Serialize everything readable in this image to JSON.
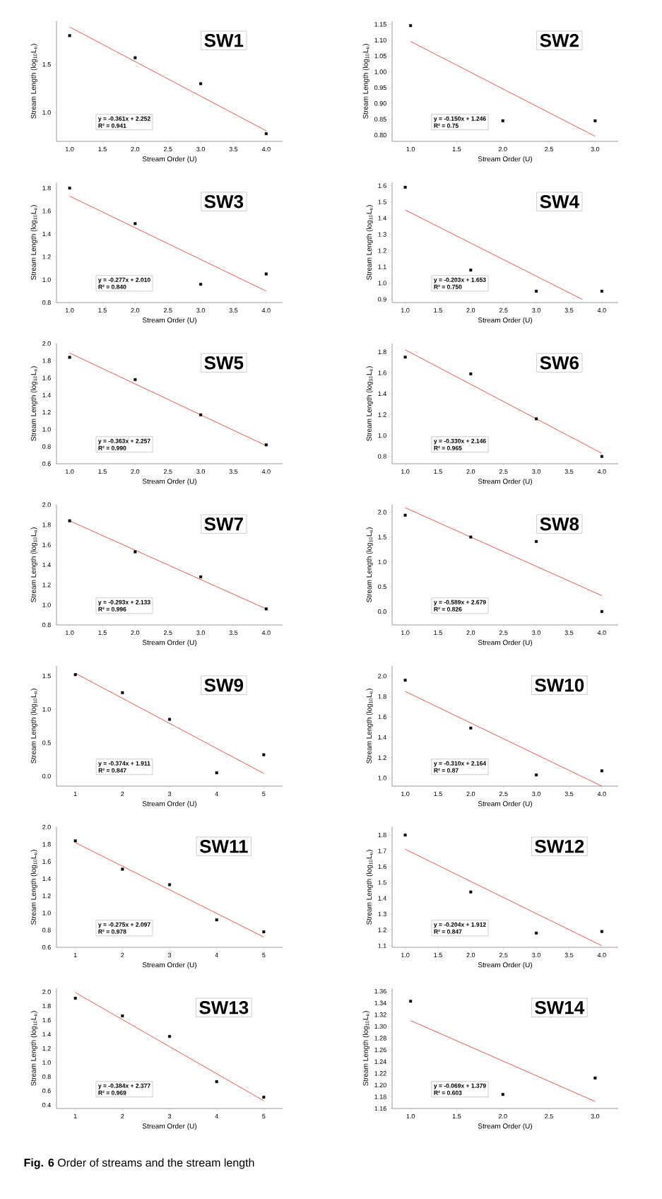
{
  "chart_data": [
    {
      "type": "scatter",
      "title": "SW1",
      "xlabel": "Stream Order (U)",
      "ylabel": "Stream Length (log$_{10}$L$_{u}$)",
      "annotations": [
        "y = -0.361x + 2.252",
        "R² = 0.941",
        "**Fig. 6** Order of streams and the stream length"
      ],
      "xlim": [
        0.8,
        4.25
      ],
      "ylim": [
        0.7,
        1.95
      ],
      "xticks": [
        {
          "value": 1,
          "label": "1.0"
        },
        1.5,
        {
          "value": 2,
          "label": "2.0"
        },
        2.5,
        {
          "value": 3,
          "label": "3.0"
        },
        3.5,
        {
          "value": 4,
          "label": "4.0"
        }
      ],
      "yticks": [
        {
          "value": 1,
          "label": "1.0"
        },
        1.5
      ],
      "series": [
        {
          "marker": "square",
          "color": "#000000",
          "x": [
            1,
            2,
            3,
            4
          ],
          "values": [
            1.8,
            1.57,
            1.3,
            0.78
          ]
        },
        {
          "type": "line",
          "color": "#e8473f",
          "x": [
            1,
            4
          ],
          "values": [
            1.89,
            0.81
          ]
        }
      ]
    },
    {
      "type": "scatter",
      "title": "SW2",
      "xlabel": "Stream Order (U)",
      "ylabel": "Stream Length (log$_{10}$L$_{u}$)",
      "annotations": [
        "y = -0.150x + 1.246",
        "R² = 0.75"
      ],
      "xlim": [
        0.8,
        3.25
      ],
      "ylim": [
        0.78,
        1.16
      ],
      "xticks": [
        {
          "value": 1,
          "label": "1.0"
        },
        1.5,
        {
          "value": 2,
          "label": "2.0"
        },
        2.5,
        {
          "value": 3,
          "label": "3.0"
        }
      ],
      "yticks": [
        {
          "value": 0.8,
          "label": "0.80"
        },
        0.85,
        {
          "value": 0.9,
          "label": "0.90"
        },
        0.95,
        {
          "value": 1,
          "label": "1.00"
        },
        1.05,
        {
          "value": 1.1,
          "label": "1.10"
        },
        1.15
      ],
      "series": [
        {
          "marker": "square",
          "color": "#000000",
          "x": [
            1,
            2,
            3
          ],
          "values": [
            1.146,
            0.845,
            0.845
          ]
        },
        {
          "type": "line",
          "color": "#e8473f",
          "x": [
            1,
            3
          ],
          "values": [
            1.096,
            0.796
          ]
        }
      ]
    },
    {
      "type": "scatter",
      "title": "SW3",
      "xlabel": "Stream Order (U)",
      "ylabel": "Stream Length (log$_{10}$L$_{u}$)",
      "annotations": [
        "y = -0.277x + 2.010",
        "R² = 0.840"
      ],
      "xlim": [
        0.8,
        4.25
      ],
      "ylim": [
        0.8,
        1.85
      ],
      "xticks": [
        {
          "value": 1,
          "label": "1.0"
        },
        1.5,
        {
          "value": 2,
          "label": "2.0"
        },
        2.5,
        {
          "value": 3,
          "label": "3.0"
        },
        3.5,
        {
          "value": 4,
          "label": "4.0"
        }
      ],
      "yticks": [
        0.8,
        {
          "value": 1,
          "label": "1.0"
        },
        1.2,
        1.4,
        1.6,
        1.8
      ],
      "series": [
        {
          "marker": "square",
          "color": "#000000",
          "x": [
            1,
            2,
            3,
            4
          ],
          "values": [
            1.8,
            1.49,
            0.96,
            1.05
          ]
        },
        {
          "type": "line",
          "color": "#e8473f",
          "x": [
            1,
            4
          ],
          "values": [
            1.73,
            0.9
          ]
        }
      ]
    },
    {
      "type": "scatter",
      "title": "SW4",
      "xlabel": "Stream Order (U)",
      "ylabel": "Stream Length (log$_{10}$L$_{u}$)",
      "annotations": [
        "y = -0.203x + 1.653",
        "R² = 0.750"
      ],
      "xlim": [
        0.8,
        4.25
      ],
      "ylim": [
        0.88,
        1.62
      ],
      "xticks": [
        {
          "value": 1,
          "label": "1.0"
        },
        1.5,
        {
          "value": 2,
          "label": "2.0"
        },
        2.5,
        {
          "value": 3,
          "label": "3.0"
        },
        3.5,
        {
          "value": 4,
          "label": "4.0"
        }
      ],
      "yticks": [
        0.9,
        {
          "value": 1,
          "label": "1.0"
        },
        1.1,
        1.2,
        1.3,
        1.4,
        1.5,
        1.6
      ],
      "series": [
        {
          "marker": "square",
          "color": "#000000",
          "x": [
            1,
            2,
            3,
            4
          ],
          "values": [
            1.59,
            1.08,
            0.95,
            0.95
          ]
        },
        {
          "type": "line",
          "color": "#e8473f",
          "x": [
            1,
            3.7
          ],
          "values": [
            1.45,
            0.9
          ]
        }
      ]
    },
    {
      "type": "scatter",
      "title": "SW5",
      "xlabel": "Stream Order (U)",
      "ylabel": "Stream Length (log$_{10}$L$_{u}$)",
      "annotations": [
        "y = -0.363x + 2.257",
        "R² = 0.990"
      ],
      "xlim": [
        0.8,
        4.25
      ],
      "ylim": [
        0.6,
        2.0
      ],
      "xticks": [
        {
          "value": 1,
          "label": "1.0"
        },
        1.5,
        {
          "value": 2,
          "label": "2.0"
        },
        2.5,
        {
          "value": 3,
          "label": "3.0"
        },
        3.5,
        {
          "value": 4,
          "label": "4.0"
        }
      ],
      "yticks": [
        0.6,
        0.8,
        {
          "value": 1,
          "label": "1.0"
        },
        1.2,
        1.4,
        1.6,
        1.8,
        {
          "value": 2,
          "label": "2.0"
        }
      ],
      "series": [
        {
          "marker": "square",
          "color": "#000000",
          "x": [
            1,
            2,
            3,
            4
          ],
          "values": [
            1.84,
            1.58,
            1.17,
            0.82
          ]
        },
        {
          "type": "line",
          "color": "#e8473f",
          "x": [
            1,
            4
          ],
          "values": [
            1.89,
            0.81
          ]
        }
      ]
    },
    {
      "type": "scatter",
      "title": "SW6",
      "xlabel": "Stream Order (U)",
      "ylabel": "Stream Length (log$_{10}$L$_{u}$)",
      "annotations": [
        "y = -0.330x + 2.146",
        "R² = 0.965"
      ],
      "xlim": [
        0.8,
        4.25
      ],
      "ylim": [
        0.73,
        1.88
      ],
      "xticks": [
        {
          "value": 1,
          "label": "1.0"
        },
        1.5,
        {
          "value": 2,
          "label": "2.0"
        },
        2.5,
        {
          "value": 3,
          "label": "3.0"
        },
        3.5,
        {
          "value": 4,
          "label": "4.0"
        }
      ],
      "yticks": [
        0.8,
        {
          "value": 1,
          "label": "1.0"
        },
        1.2,
        1.4,
        1.6,
        1.8
      ],
      "series": [
        {
          "marker": "square",
          "color": "#000000",
          "x": [
            1,
            2,
            3,
            4
          ],
          "values": [
            1.75,
            1.59,
            1.16,
            0.8
          ]
        },
        {
          "type": "line",
          "color": "#e8473f",
          "x": [
            1,
            4
          ],
          "values": [
            1.82,
            0.83
          ]
        }
      ]
    },
    {
      "type": "scatter",
      "title": "SW7",
      "xlabel": "Stream Order (U)",
      "ylabel": "Stream Length (log$_{10}$L$_{u}$)",
      "annotations": [
        "y = -0.293x + 2.133",
        "R² = 0.996"
      ],
      "xlim": [
        0.8,
        4.25
      ],
      "ylim": [
        0.8,
        2.0
      ],
      "xticks": [
        {
          "value": 1,
          "label": "1.0"
        },
        1.5,
        {
          "value": 2,
          "label": "2.0"
        },
        2.5,
        {
          "value": 3,
          "label": "3.0"
        },
        3.5,
        {
          "value": 4,
          "label": "4.0"
        }
      ],
      "yticks": [
        0.8,
        {
          "value": 1,
          "label": "1.0"
        },
        1.2,
        1.4,
        1.6,
        1.8,
        {
          "value": 2,
          "label": "2.0"
        }
      ],
      "series": [
        {
          "marker": "square",
          "color": "#000000",
          "x": [
            1,
            2,
            3,
            4
          ],
          "values": [
            1.84,
            1.53,
            1.28,
            0.96
          ]
        },
        {
          "type": "line",
          "color": "#e8473f",
          "x": [
            1,
            4
          ],
          "values": [
            1.84,
            0.96
          ]
        }
      ]
    },
    {
      "type": "scatter",
      "title": "SW8",
      "xlabel": "Stream Order (U)",
      "ylabel": "Stream Length (log$_{10}$L$_{u}$)",
      "annotations": [
        "y = -0.589x + 2.679",
        "R² = 0.826"
      ],
      "xlim": [
        0.8,
        4.25
      ],
      "ylim": [
        -0.27,
        2.15
      ],
      "xticks": [
        {
          "value": 1,
          "label": "1.0"
        },
        1.5,
        {
          "value": 2,
          "label": "2.0"
        },
        2.5,
        {
          "value": 3,
          "label": "3.0"
        },
        3.5,
        {
          "value": 4,
          "label": "4.0"
        }
      ],
      "yticks": [
        {
          "value": 0,
          "label": "0.0"
        },
        0.5,
        {
          "value": 1,
          "label": "1.0"
        },
        1.5,
        {
          "value": 2,
          "label": "2.0"
        }
      ],
      "series": [
        {
          "marker": "square",
          "color": "#000000",
          "x": [
            1,
            2,
            3,
            4
          ],
          "values": [
            1.94,
            1.5,
            1.41,
            0.0
          ]
        },
        {
          "type": "line",
          "color": "#e8473f",
          "x": [
            1,
            4
          ],
          "values": [
            2.09,
            0.32
          ]
        }
      ]
    },
    {
      "type": "scatter",
      "title": "SW9",
      "xlabel": "Stream Order (U)",
      "ylabel": "Stream Length (log$_{10}$L$_{u}$)",
      "annotations": [
        "y = -0.374x + 1.911",
        "R² = 0.847"
      ],
      "xlim": [
        0.6,
        5.4
      ],
      "ylim": [
        -0.15,
        1.65
      ],
      "xticks": [
        1,
        2,
        3,
        4,
        5
      ],
      "yticks": [
        {
          "value": 0,
          "label": "0.0"
        },
        0.5,
        {
          "value": 1,
          "label": "1.0"
        },
        1.5
      ],
      "series": [
        {
          "marker": "square",
          "color": "#000000",
          "x": [
            1,
            2,
            3,
            4,
            5
          ],
          "values": [
            1.52,
            1.25,
            0.85,
            0.05,
            0.32
          ]
        },
        {
          "type": "line",
          "color": "#e8473f",
          "x": [
            1,
            5
          ],
          "values": [
            1.54,
            0.04
          ]
        }
      ]
    },
    {
      "type": "scatter",
      "title": "SW10",
      "xlabel": "Stream Order (U)",
      "ylabel": "Stream Length (log$_{10}$L$_{u}$)",
      "annotations": [
        "y = -0.310x + 2.164",
        "R² = 0.87"
      ],
      "xlim": [
        0.8,
        4.25
      ],
      "ylim": [
        0.92,
        2.1
      ],
      "xticks": [
        {
          "value": 1,
          "label": "1.0"
        },
        1.5,
        {
          "value": 2,
          "label": "2.0"
        },
        2.5,
        {
          "value": 3,
          "label": "3.0"
        },
        3.5,
        {
          "value": 4,
          "label": "4.0"
        }
      ],
      "yticks": [
        {
          "value": 1,
          "label": "1.0"
        },
        1.2,
        1.4,
        1.6,
        1.8,
        {
          "value": 2,
          "label": "2.0"
        }
      ],
      "series": [
        {
          "marker": "square",
          "color": "#000000",
          "x": [
            1,
            2,
            3,
            4
          ],
          "values": [
            1.96,
            1.49,
            1.03,
            1.07
          ]
        },
        {
          "type": "line",
          "color": "#e8473f",
          "x": [
            1,
            4
          ],
          "values": [
            1.85,
            0.92
          ]
        }
      ]
    },
    {
      "type": "scatter",
      "title": "SW11",
      "xlabel": "Stream Order (U)",
      "ylabel": "Stream Length (log$_{10}$L$_{u}$)",
      "annotations": [
        "y = -0.275x + 2.097",
        "R² = 0.978"
      ],
      "xlim": [
        0.6,
        5.4
      ],
      "ylim": [
        0.6,
        2.0
      ],
      "xticks": [
        1,
        2,
        3,
        4,
        5
      ],
      "yticks": [
        0.6,
        0.8,
        {
          "value": 1,
          "label": "1.0"
        },
        1.2,
        1.4,
        1.6,
        1.8,
        {
          "value": 2,
          "label": "2.0"
        }
      ],
      "series": [
        {
          "marker": "square",
          "color": "#000000",
          "x": [
            1,
            2,
            3,
            4,
            5
          ],
          "values": [
            1.84,
            1.51,
            1.33,
            0.92,
            0.78
          ]
        },
        {
          "type": "line",
          "color": "#e8473f",
          "x": [
            1,
            5
          ],
          "values": [
            1.82,
            0.72
          ]
        }
      ]
    },
    {
      "type": "scatter",
      "title": "SW12",
      "xlabel": "Stream Order (U)",
      "ylabel": "Stream Length (log$_{10}$L$_{u}$)",
      "annotations": [
        "y = -0.204x + 1.912",
        "R² = 0.847"
      ],
      "xlim": [
        0.8,
        4.25
      ],
      "ylim": [
        1.09,
        1.85
      ],
      "xticks": [
        {
          "value": 1,
          "label": "1.0"
        },
        1.5,
        {
          "value": 2,
          "label": "2.0"
        },
        2.5,
        {
          "value": 3,
          "label": "3.0"
        },
        3.5,
        {
          "value": 4,
          "label": "4.0"
        }
      ],
      "yticks": [
        1.1,
        1.2,
        1.3,
        1.4,
        1.5,
        1.6,
        1.7,
        1.8
      ],
      "series": [
        {
          "marker": "square",
          "color": "#000000",
          "x": [
            1,
            2,
            3,
            4
          ],
          "values": [
            1.8,
            1.44,
            1.18,
            1.19
          ]
        },
        {
          "type": "line",
          "color": "#e8473f",
          "x": [
            1,
            4
          ],
          "values": [
            1.71,
            1.1
          ]
        }
      ]
    },
    {
      "type": "scatter",
      "title": "SW13",
      "xlabel": "Stream Order (U)",
      "ylabel": "Stream Length (log$_{10}$L$_{u}$)",
      "annotations": [
        "y = -0.384x + 2.377",
        "R² = 0.969"
      ],
      "xlim": [
        0.6,
        5.4
      ],
      "ylim": [
        0.35,
        2.05
      ],
      "xticks": [
        1,
        2,
        3,
        4,
        5
      ],
      "yticks": [
        0.4,
        0.6,
        0.8,
        {
          "value": 1,
          "label": "1.0"
        },
        1.2,
        1.4,
        1.6,
        1.8,
        {
          "value": 2,
          "label": "2.0"
        }
      ],
      "series": [
        {
          "marker": "square",
          "color": "#000000",
          "x": [
            1,
            2,
            3,
            4,
            5
          ],
          "values": [
            1.91,
            1.66,
            1.37,
            0.73,
            0.51
          ]
        },
        {
          "type": "line",
          "color": "#e8473f",
          "x": [
            1,
            5
          ],
          "values": [
            1.99,
            0.46
          ]
        }
      ]
    },
    {
      "type": "scatter",
      "title": "SW14",
      "xlabel": "Stream Order (U)",
      "ylabel": "Stream Length (log$_{10}$L$_{u}$)",
      "annotations": [
        "y = -0.069x + 1.379",
        "R² = 0.603"
      ],
      "xlim": [
        0.8,
        3.25
      ],
      "ylim": [
        1.16,
        1.365
      ],
      "xticks": [
        {
          "value": 1,
          "label": "1.0"
        },
        1.5,
        {
          "value": 2,
          "label": "2.0"
        },
        2.5,
        {
          "value": 3,
          "label": "3.0"
        }
      ],
      "yticks": [
        1.16,
        1.18,
        {
          "value": 1.2,
          "label": "1.20"
        },
        1.22,
        1.24,
        1.26,
        1.28,
        {
          "value": 1.3,
          "label": "1.30"
        },
        1.32,
        1.34,
        1.36
      ],
      "series": [
        {
          "marker": "square",
          "color": "#000000",
          "x": [
            1,
            2,
            3
          ],
          "values": [
            1.343,
            1.184,
            1.212
          ]
        },
        {
          "type": "line",
          "color": "#e8473f",
          "x": [
            1,
            3
          ],
          "values": [
            1.31,
            1.172
          ]
        }
      ]
    }
  ]
}
